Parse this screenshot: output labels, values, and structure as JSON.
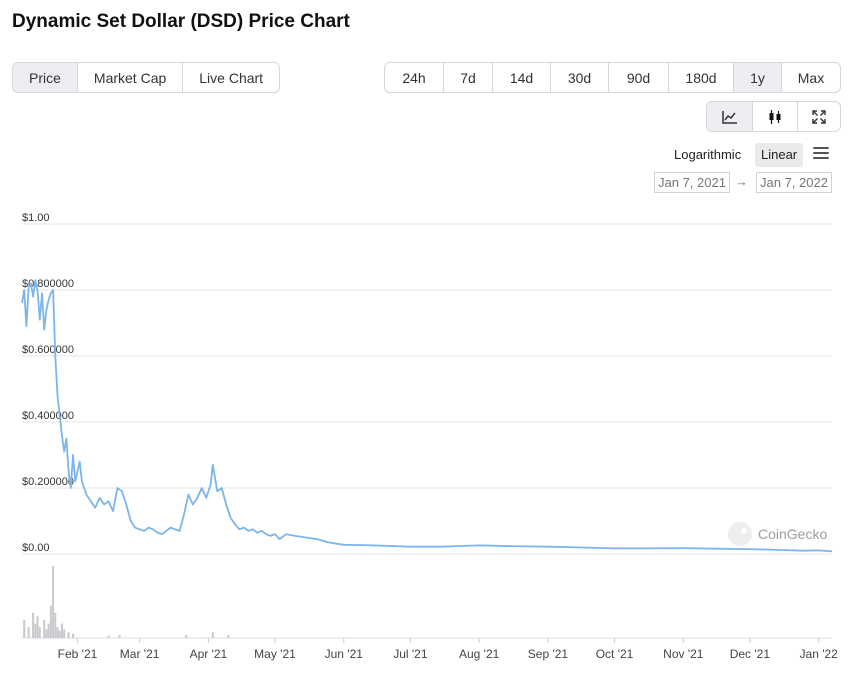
{
  "page": {
    "title": "Dynamic Set Dollar (DSD) Price Chart"
  },
  "type_tabs": [
    {
      "label": "Price",
      "active": true
    },
    {
      "label": "Market Cap",
      "active": false
    },
    {
      "label": "Live Chart",
      "active": false
    }
  ],
  "range_tabs": [
    {
      "label": "24h",
      "active": false
    },
    {
      "label": "7d",
      "active": false
    },
    {
      "label": "14d",
      "active": false
    },
    {
      "label": "30d",
      "active": false
    },
    {
      "label": "90d",
      "active": false
    },
    {
      "label": "180d",
      "active": false
    },
    {
      "label": "1y",
      "active": true
    },
    {
      "label": "Max",
      "active": false
    }
  ],
  "view_tabs": [
    {
      "icon": "line-chart-icon",
      "active": true
    },
    {
      "icon": "candlestick-icon",
      "active": false
    },
    {
      "icon": "expand-icon",
      "active": false
    }
  ],
  "scale": {
    "log_label": "Logarithmic",
    "linear_label": "Linear",
    "active": "Linear"
  },
  "date_range": {
    "from": "Jan 7, 2021",
    "arrow": "→",
    "to": "Jan 7, 2022"
  },
  "watermark": "CoinGecko",
  "colors": {
    "line": "#7cb5ec",
    "volume": "#c7c9cc",
    "grid": "#e6e6e6",
    "active_button": "#eceef1"
  },
  "chart_data": {
    "type": "line",
    "title": "",
    "xlabel": "",
    "ylabel": "",
    "ylim": [
      0,
      1.0
    ],
    "xlim": [
      "2021-01-07",
      "2022-01-07"
    ],
    "y_ticks": [
      "$0.00",
      "$0.200000",
      "$0.400000",
      "$0.600000",
      "$0.800000",
      "$1.00"
    ],
    "y_tick_values": [
      0,
      0.2,
      0.4,
      0.6,
      0.8,
      1.0
    ],
    "x_ticks": [
      "Feb '21",
      "Mar '21",
      "Apr '21",
      "May '21",
      "Jun '21",
      "Jul '21",
      "Aug '21",
      "Sep '21",
      "Oct '21",
      "Nov '21",
      "Dec '21",
      "Jan '22"
    ],
    "x_tick_dates": [
      "2021-02-01",
      "2021-03-01",
      "2021-04-01",
      "2021-05-01",
      "2021-06-01",
      "2021-07-01",
      "2021-08-01",
      "2021-09-01",
      "2021-10-01",
      "2021-11-01",
      "2021-12-01",
      "2022-01-01"
    ],
    "grid": true,
    "series": [
      {
        "points": [
          [
            "2021-01-07",
            0.76
          ],
          [
            "2021-01-08",
            0.8
          ],
          [
            "2021-01-09",
            0.69
          ],
          [
            "2021-01-10",
            0.81
          ],
          [
            "2021-01-11",
            0.82
          ],
          [
            "2021-01-12",
            0.78
          ],
          [
            "2021-01-13",
            0.83
          ],
          [
            "2021-01-14",
            0.8
          ],
          [
            "2021-01-15",
            0.71
          ],
          [
            "2021-01-16",
            0.79
          ],
          [
            "2021-01-17",
            0.68
          ],
          [
            "2021-01-18",
            0.74
          ],
          [
            "2021-01-19",
            0.77
          ],
          [
            "2021-01-20",
            0.79
          ],
          [
            "2021-01-21",
            0.8
          ],
          [
            "2021-01-22",
            0.6
          ],
          [
            "2021-01-23",
            0.48
          ],
          [
            "2021-01-24",
            0.42
          ],
          [
            "2021-01-25",
            0.36
          ],
          [
            "2021-01-26",
            0.31
          ],
          [
            "2021-01-27",
            0.35
          ],
          [
            "2021-01-28",
            0.25
          ],
          [
            "2021-01-29",
            0.2
          ],
          [
            "2021-01-30",
            0.3
          ],
          [
            "2021-01-31",
            0.22
          ],
          [
            "2021-02-01",
            0.25
          ],
          [
            "2021-02-02",
            0.28
          ],
          [
            "2021-02-03",
            0.22
          ],
          [
            "2021-02-05",
            0.18
          ],
          [
            "2021-02-07",
            0.16
          ],
          [
            "2021-02-09",
            0.14
          ],
          [
            "2021-02-11",
            0.17
          ],
          [
            "2021-02-13",
            0.15
          ],
          [
            "2021-02-15",
            0.16
          ],
          [
            "2021-02-17",
            0.13
          ],
          [
            "2021-02-19",
            0.2
          ],
          [
            "2021-02-21",
            0.19
          ],
          [
            "2021-02-23",
            0.15
          ],
          [
            "2021-02-25",
            0.1
          ],
          [
            "2021-02-27",
            0.08
          ],
          [
            "2021-03-01",
            0.075
          ],
          [
            "2021-03-03",
            0.07
          ],
          [
            "2021-03-05",
            0.08
          ],
          [
            "2021-03-07",
            0.075
          ],
          [
            "2021-03-09",
            0.065
          ],
          [
            "2021-03-11",
            0.06
          ],
          [
            "2021-03-13",
            0.07
          ],
          [
            "2021-03-15",
            0.08
          ],
          [
            "2021-03-17",
            0.075
          ],
          [
            "2021-03-19",
            0.07
          ],
          [
            "2021-03-21",
            0.12
          ],
          [
            "2021-03-23",
            0.18
          ],
          [
            "2021-03-25",
            0.15
          ],
          [
            "2021-03-27",
            0.17
          ],
          [
            "2021-03-29",
            0.2
          ],
          [
            "2021-03-31",
            0.17
          ],
          [
            "2021-04-02",
            0.21
          ],
          [
            "2021-04-03",
            0.27
          ],
          [
            "2021-04-05",
            0.19
          ],
          [
            "2021-04-07",
            0.2
          ],
          [
            "2021-04-09",
            0.15
          ],
          [
            "2021-04-11",
            0.11
          ],
          [
            "2021-04-13",
            0.09
          ],
          [
            "2021-04-15",
            0.075
          ],
          [
            "2021-04-17",
            0.08
          ],
          [
            "2021-04-19",
            0.07
          ],
          [
            "2021-04-21",
            0.075
          ],
          [
            "2021-04-23",
            0.065
          ],
          [
            "2021-04-25",
            0.07
          ],
          [
            "2021-04-27",
            0.06
          ],
          [
            "2021-04-29",
            0.055
          ],
          [
            "2021-05-01",
            0.06
          ],
          [
            "2021-05-03",
            0.045
          ],
          [
            "2021-05-06",
            0.06
          ],
          [
            "2021-05-10",
            0.055
          ],
          [
            "2021-05-15",
            0.05
          ],
          [
            "2021-05-20",
            0.045
          ],
          [
            "2021-05-25",
            0.035
          ],
          [
            "2021-06-01",
            0.028
          ],
          [
            "2021-06-10",
            0.027
          ],
          [
            "2021-06-20",
            0.025
          ],
          [
            "2021-07-01",
            0.022
          ],
          [
            "2021-07-15",
            0.022
          ],
          [
            "2021-08-01",
            0.026
          ],
          [
            "2021-08-15",
            0.024
          ],
          [
            "2021-09-01",
            0.022
          ],
          [
            "2021-09-15",
            0.02
          ],
          [
            "2021-10-01",
            0.017
          ],
          [
            "2021-10-15",
            0.017
          ],
          [
            "2021-11-01",
            0.018
          ],
          [
            "2021-11-15",
            0.016
          ],
          [
            "2021-12-01",
            0.015
          ],
          [
            "2021-12-15",
            0.012
          ],
          [
            "2021-12-25",
            0.01
          ],
          [
            "2022-01-01",
            0.011
          ],
          [
            "2022-01-07",
            0.008
          ]
        ]
      }
    ],
    "volume": [
      [
        "2021-01-08",
        0.25
      ],
      [
        "2021-01-10",
        0.15
      ],
      [
        "2021-01-12",
        0.35
      ],
      [
        "2021-01-13",
        0.2
      ],
      [
        "2021-01-14",
        0.3
      ],
      [
        "2021-01-15",
        0.15
      ],
      [
        "2021-01-17",
        0.25
      ],
      [
        "2021-01-18",
        0.12
      ],
      [
        "2021-01-19",
        0.2
      ],
      [
        "2021-01-20",
        0.45
      ],
      [
        "2021-01-21",
        1.0
      ],
      [
        "2021-01-22",
        0.35
      ],
      [
        "2021-01-23",
        0.15
      ],
      [
        "2021-01-24",
        0.1
      ],
      [
        "2021-01-25",
        0.2
      ],
      [
        "2021-01-26",
        0.12
      ],
      [
        "2021-01-28",
        0.08
      ],
      [
        "2021-01-30",
        0.06
      ],
      [
        "2021-02-15",
        0.03
      ],
      [
        "2021-02-20",
        0.04
      ],
      [
        "2021-03-22",
        0.04
      ],
      [
        "2021-04-03",
        0.08
      ],
      [
        "2021-04-10",
        0.04
      ]
    ]
  }
}
